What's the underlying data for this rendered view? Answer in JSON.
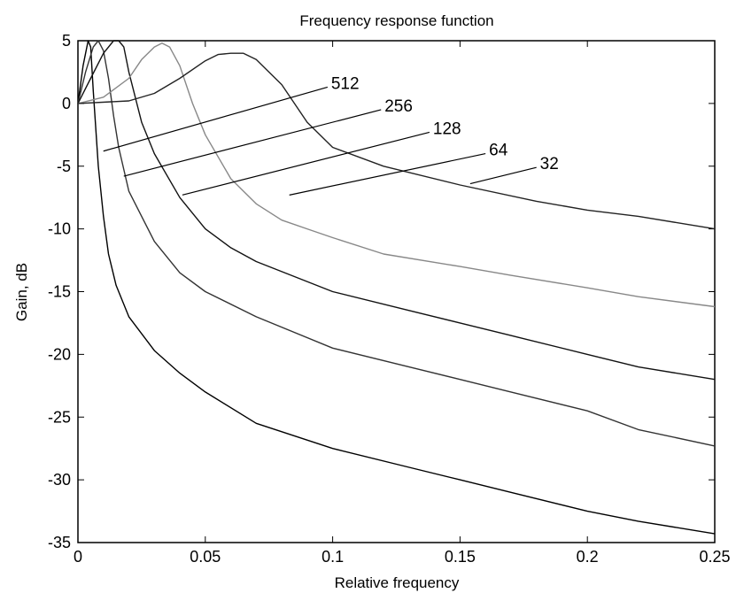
{
  "chart_data": {
    "type": "line",
    "title": "Frequency response function",
    "xlabel": "Relative frequency",
    "ylabel": "Gain, dB",
    "xlim": [
      0,
      0.25
    ],
    "ylim": [
      -35,
      5
    ],
    "xticks": [
      0,
      0.05,
      0.1,
      0.15,
      0.2,
      0.25
    ],
    "xtick_labels": [
      "0",
      "0.05",
      "0.1",
      "0.15",
      "0.2",
      "0.25"
    ],
    "yticks": [
      5,
      0,
      -5,
      -10,
      -15,
      -20,
      -25,
      -30,
      -35
    ],
    "ytick_labels": [
      "5",
      "0",
      "-5",
      "-10",
      "-15",
      "-20",
      "-25",
      "-30",
      "-35"
    ],
    "grid": false,
    "series": [
      {
        "name": "512",
        "color": "#000000",
        "x": [
          0,
          0.002,
          0.004,
          0.005,
          0.006,
          0.008,
          0.01,
          0.012,
          0.015,
          0.02,
          0.03,
          0.04,
          0.05,
          0.07,
          0.1,
          0.13,
          0.15,
          0.17,
          0.2,
          0.22,
          0.25
        ],
        "y": [
          0,
          3,
          5,
          4.5,
          1,
          -5,
          -9,
          -12,
          -14.5,
          -17,
          -19.7,
          -21.5,
          -23,
          -25.5,
          -27.5,
          -29,
          -30,
          -31,
          -32.5,
          -33.3,
          -34.3
        ]
      },
      {
        "name": "256",
        "color": "#333333",
        "x": [
          0,
          0.003,
          0.006,
          0.008,
          0.01,
          0.012,
          0.014,
          0.016,
          0.02,
          0.03,
          0.04,
          0.05,
          0.07,
          0.1,
          0.13,
          0.15,
          0.17,
          0.2,
          0.22,
          0.25
        ],
        "y": [
          0,
          2.5,
          4.5,
          5,
          4.2,
          2,
          -1,
          -3.5,
          -7,
          -11,
          -13.5,
          -15,
          -17,
          -19.5,
          -21,
          -22,
          -23,
          -24.5,
          -26,
          -27.3
        ]
      },
      {
        "name": "128",
        "color": "#111111",
        "x": [
          0,
          0.005,
          0.01,
          0.014,
          0.016,
          0.018,
          0.02,
          0.025,
          0.03,
          0.04,
          0.05,
          0.06,
          0.07,
          0.1,
          0.13,
          0.15,
          0.17,
          0.2,
          0.22,
          0.25
        ],
        "y": [
          0,
          2,
          4,
          5,
          5,
          4.5,
          2.5,
          -1.5,
          -4,
          -7.5,
          -10,
          -11.5,
          -12.6,
          -15,
          -16.5,
          -17.5,
          -18.5,
          -20,
          -21,
          -22
        ]
      },
      {
        "name": "64",
        "color": "#888888",
        "x": [
          0,
          0.01,
          0.02,
          0.025,
          0.03,
          0.033,
          0.036,
          0.04,
          0.045,
          0.05,
          0.06,
          0.07,
          0.08,
          0.09,
          0.1,
          0.12,
          0.15,
          0.17,
          0.2,
          0.22,
          0.25
        ],
        "y": [
          0,
          0.5,
          2,
          3.5,
          4.5,
          4.8,
          4.5,
          3,
          0,
          -2.5,
          -6,
          -8,
          -9.3,
          -10,
          -10.7,
          -12,
          -13,
          -13.7,
          -14.7,
          -15.4,
          -16.2
        ]
      },
      {
        "name": "32",
        "color": "#222222",
        "x": [
          0,
          0.02,
          0.03,
          0.04,
          0.05,
          0.055,
          0.06,
          0.065,
          0.07,
          0.08,
          0.09,
          0.1,
          0.12,
          0.15,
          0.18,
          0.2,
          0.22,
          0.25
        ],
        "y": [
          0,
          0.2,
          0.8,
          2,
          3.4,
          3.9,
          4,
          4,
          3.5,
          1.5,
          -1.5,
          -3.5,
          -5,
          -6.5,
          -7.8,
          -8.5,
          -9,
          -10
        ]
      }
    ],
    "annotations": [
      {
        "text": "512",
        "x": 0.098,
        "y": 1.3,
        "line_from": [
          0.01,
          -3.8
        ]
      },
      {
        "text": "256",
        "x": 0.119,
        "y": -0.5,
        "line_from": [
          0.018,
          -5.8
        ]
      },
      {
        "text": "128",
        "x": 0.138,
        "y": -2.3,
        "line_from": [
          0.041,
          -7.3
        ]
      },
      {
        "text": "64",
        "x": 0.16,
        "y": -4.0,
        "line_from": [
          0.083,
          -7.3
        ]
      },
      {
        "text": "32",
        "x": 0.18,
        "y": -5.1,
        "line_from": [
          0.154,
          -6.4
        ]
      }
    ]
  }
}
